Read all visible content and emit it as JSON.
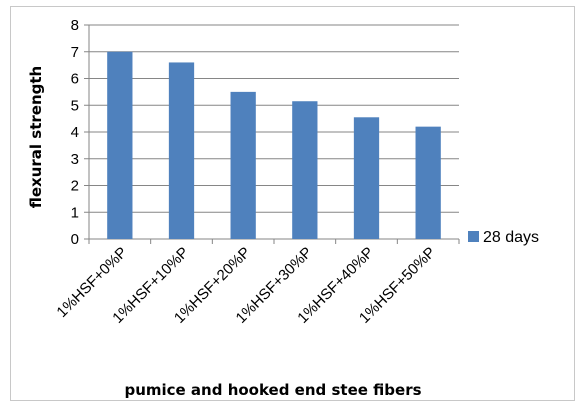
{
  "chart_data": {
    "type": "bar",
    "categories": [
      "1%HSF+0%P",
      "1%HSF+10%P",
      "1%HSF+20%P",
      "1%HSF+30%P",
      "1%HSF+40%P",
      "1%HSF+50%P"
    ],
    "series": [
      {
        "name": "28 days",
        "values": [
          7.0,
          6.6,
          5.5,
          5.15,
          4.55,
          4.2
        ]
      }
    ],
    "xlabel": "pumice and hooked end stee fibers",
    "ylabel": "flexural strength",
    "ylim": [
      0,
      8
    ],
    "yticks": [
      0,
      1,
      2,
      3,
      4,
      5,
      6,
      7,
      8
    ],
    "grid": true,
    "legend_position": "right",
    "colors": {
      "bar": "#4f81bd",
      "grid": "#868686",
      "axis": "#868686"
    }
  }
}
